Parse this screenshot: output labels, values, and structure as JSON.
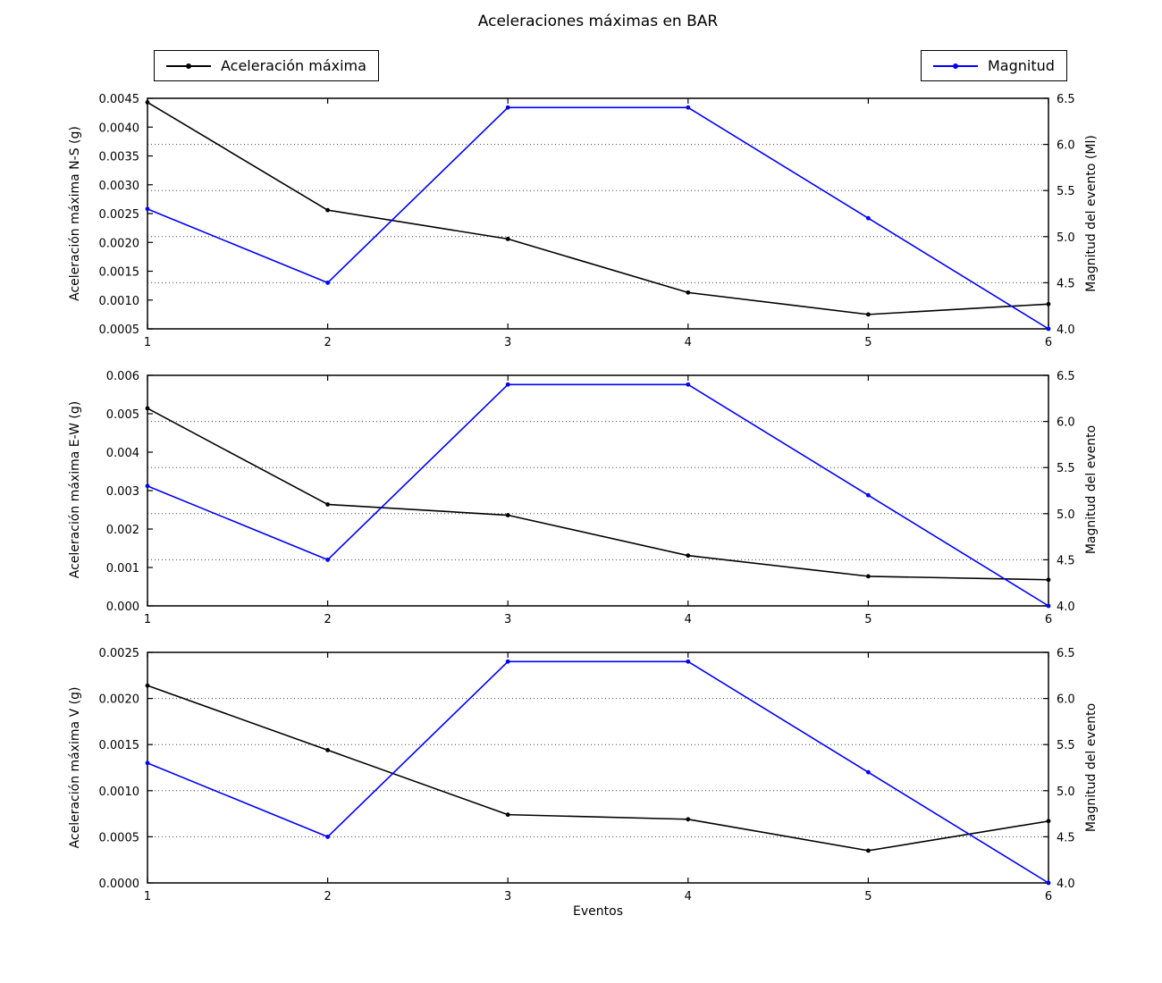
{
  "figure": {
    "title": "Aceleraciones máximas en BAR",
    "xlabel": "Eventos",
    "background": "#ffffff",
    "legends": [
      {
        "label": "Aceleración máxima",
        "color": "#000000"
      },
      {
        "label": "Magnitud",
        "color": "#0000ff"
      }
    ]
  },
  "chart_data": [
    {
      "type": "line",
      "x": [
        1,
        2,
        3,
        4,
        5,
        6
      ],
      "x_tick_labels": [
        "1",
        "2",
        "3",
        "4",
        "5",
        "6"
      ],
      "left_axis": {
        "label": "Aceleración máxima N-S (g)",
        "lim": [
          0.0005,
          0.0045
        ],
        "tick_values": [
          0.0005,
          0.001,
          0.0015,
          0.002,
          0.0025,
          0.003,
          0.0035,
          0.004,
          0.0045
        ],
        "tick_labels": [
          "0.0005",
          "0.0010",
          "0.0015",
          "0.0020",
          "0.0025",
          "0.0030",
          "0.0035",
          "0.0040",
          "0.0045"
        ]
      },
      "right_axis": {
        "label": "Magnitud del evento (Ml)",
        "lim": [
          4.0,
          6.5
        ],
        "tick_values": [
          4.0,
          4.5,
          5.0,
          5.5,
          6.0,
          6.5
        ],
        "tick_labels": [
          "4.0",
          "4.5",
          "5.0",
          "5.5",
          "6.0",
          "6.5"
        ],
        "grid": "dotted"
      },
      "series": [
        {
          "name": "Aceleración máxima",
          "axis": "left",
          "color": "#000000",
          "values": [
            0.00443,
            0.00256,
            0.00206,
            0.00113,
            0.00075,
            0.00093
          ]
        },
        {
          "name": "Magnitud",
          "axis": "right",
          "color": "#0000ff",
          "values": [
            5.3,
            4.5,
            6.4,
            6.4,
            5.2,
            4.0
          ]
        }
      ]
    },
    {
      "type": "line",
      "x": [
        1,
        2,
        3,
        4,
        5,
        6
      ],
      "x_tick_labels": [
        "1",
        "2",
        "3",
        "4",
        "5",
        "6"
      ],
      "left_axis": {
        "label": "Aceleración máxima E-W (g)",
        "lim": [
          0.0,
          0.006
        ],
        "tick_values": [
          0.0,
          0.001,
          0.002,
          0.003,
          0.004,
          0.005,
          0.006
        ],
        "tick_labels": [
          "0.000",
          "0.001",
          "0.002",
          "0.003",
          "0.004",
          "0.005",
          "0.006"
        ]
      },
      "right_axis": {
        "label": "Magnitud del evento",
        "lim": [
          4.0,
          6.5
        ],
        "tick_values": [
          4.0,
          4.5,
          5.0,
          5.5,
          6.0,
          6.5
        ],
        "tick_labels": [
          "4.0",
          "4.5",
          "5.0",
          "5.5",
          "6.0",
          "6.5"
        ],
        "grid": "dotted"
      },
      "series": [
        {
          "name": "Aceleración máxima",
          "axis": "left",
          "color": "#000000",
          "values": [
            0.00514,
            0.00264,
            0.00236,
            0.00131,
            0.00077,
            0.00068
          ]
        },
        {
          "name": "Magnitud",
          "axis": "right",
          "color": "#0000ff",
          "values": [
            5.3,
            4.5,
            6.4,
            6.4,
            5.2,
            4.0
          ]
        }
      ]
    },
    {
      "type": "line",
      "x": [
        1,
        2,
        3,
        4,
        5,
        6
      ],
      "x_tick_labels": [
        "1",
        "2",
        "3",
        "4",
        "5",
        "6"
      ],
      "left_axis": {
        "label": "Aceleración máxima V (g)",
        "lim": [
          0.0,
          0.0025
        ],
        "tick_values": [
          0.0,
          0.0005,
          0.001,
          0.0015,
          0.002,
          0.0025
        ],
        "tick_labels": [
          "0.0000",
          "0.0005",
          "0.0010",
          "0.0015",
          "0.0020",
          "0.0025"
        ]
      },
      "right_axis": {
        "label": "Magnitud del evento",
        "lim": [
          4.0,
          6.5
        ],
        "tick_values": [
          4.0,
          4.5,
          5.0,
          5.5,
          6.0,
          6.5
        ],
        "tick_labels": [
          "4.0",
          "4.5",
          "5.0",
          "5.5",
          "6.0",
          "6.5"
        ],
        "grid": "dotted"
      },
      "series": [
        {
          "name": "Aceleración máxima",
          "axis": "left",
          "color": "#000000",
          "values": [
            0.00214,
            0.00144,
            0.00074,
            0.00069,
            0.00035,
            0.00067
          ]
        },
        {
          "name": "Magnitud",
          "axis": "right",
          "color": "#0000ff",
          "values": [
            5.3,
            4.5,
            6.4,
            6.4,
            5.2,
            4.0
          ]
        }
      ]
    }
  ]
}
